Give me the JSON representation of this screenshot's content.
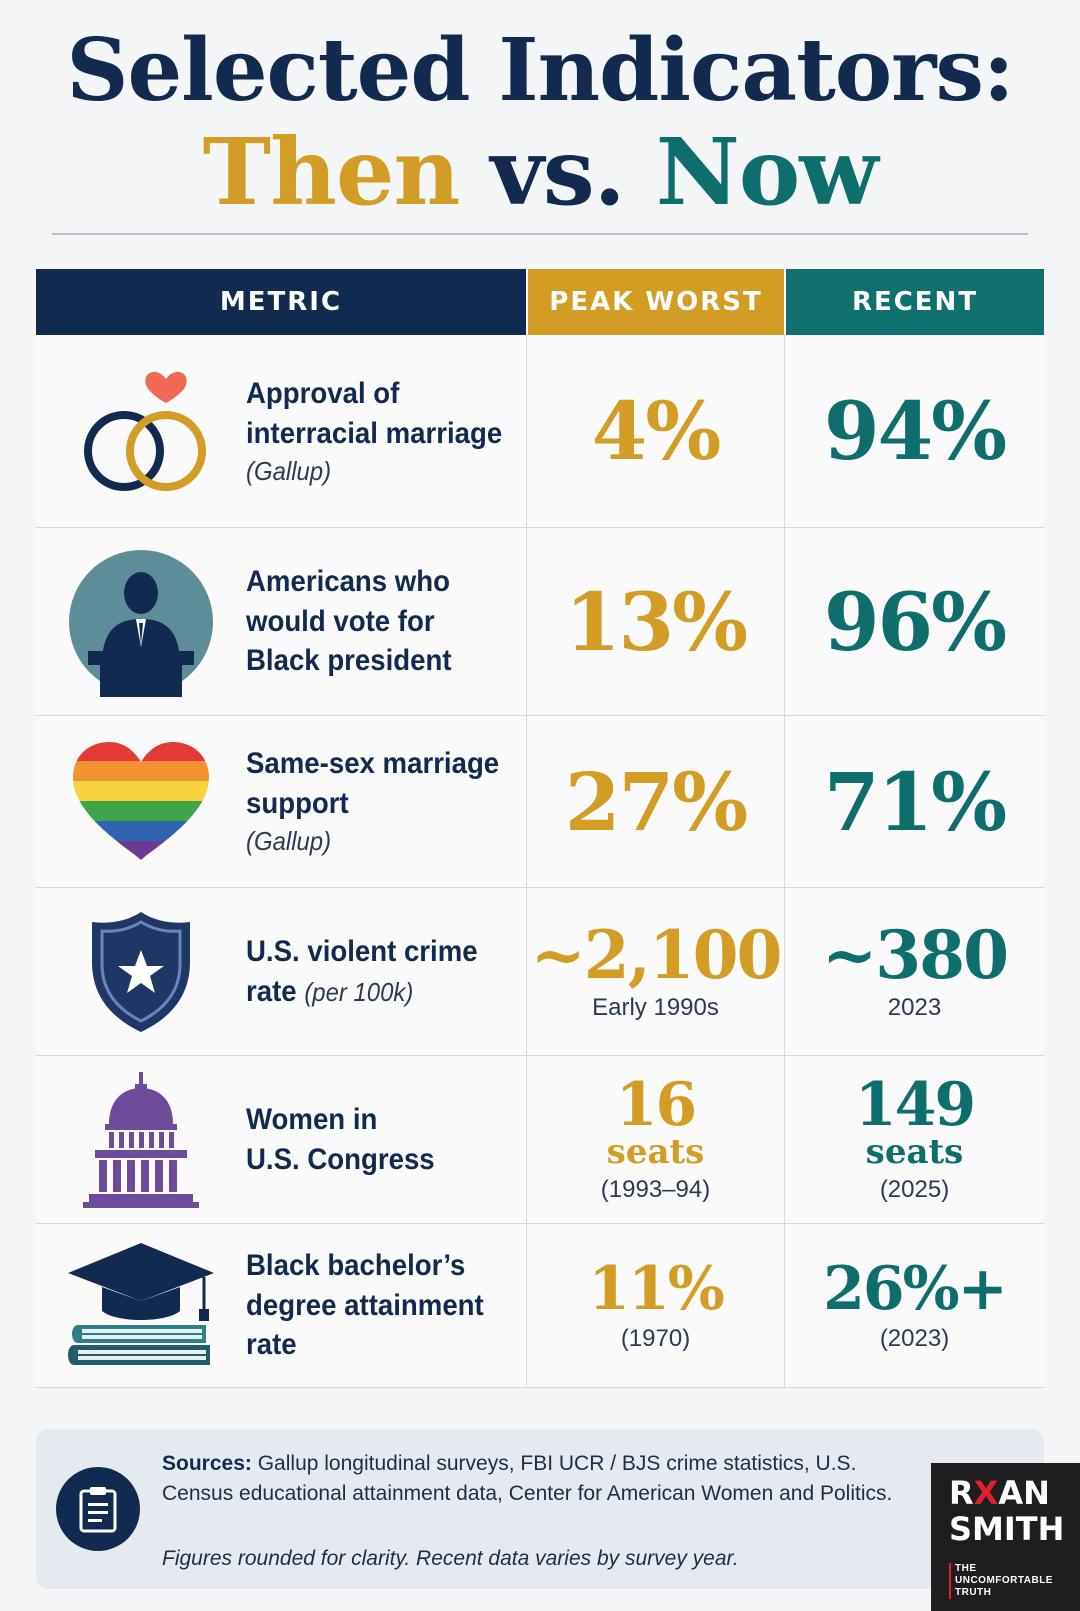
{
  "title": {
    "line1": "Selected Indicators:",
    "then": "Then",
    "vs": "vs.",
    "now": "Now"
  },
  "headers": {
    "metric": "METRIC",
    "peak": "PEAK WORST",
    "recent": "RECENT"
  },
  "rows": [
    {
      "icon": "wedding-rings-icon",
      "label": [
        "Approval of",
        "interracial marriage"
      ],
      "source": "(Gallup)",
      "peak": "4%",
      "recent": "94%"
    },
    {
      "icon": "president-podium-icon",
      "label": [
        "Americans who",
        "would vote for",
        "Black president"
      ],
      "peak": "13%",
      "recent": "96%"
    },
    {
      "icon": "rainbow-heart-icon",
      "label": [
        "Same-sex marriage",
        "support"
      ],
      "source": "(Gallup)",
      "peak": "27%",
      "recent": "71%"
    },
    {
      "icon": "police-badge-icon",
      "label": [
        "U.S. violent crime",
        "rate"
      ],
      "unit": "(per 100k)",
      "peak": "~2,100",
      "peak_note": "Early 1990s",
      "recent": "~380",
      "recent_note": "2023"
    },
    {
      "icon": "capitol-icon",
      "label": [
        "Women in",
        "U.S. Congress"
      ],
      "peak": "16",
      "peak_unit": "seats",
      "peak_note": "(1993–94)",
      "recent": "149",
      "recent_unit": "seats",
      "recent_note": "(2025)"
    },
    {
      "icon": "graduation-cap-icon",
      "label": [
        "Black bachelor’s",
        "degree attainment",
        "rate"
      ],
      "peak": "11%",
      "peak_note": "(1970)",
      "recent": "26%+",
      "recent_note": "(2023)"
    }
  ],
  "sources": {
    "label": "Sources:",
    "text": "Gallup longitudinal surveys, FBI UCR / BJS crime statistics, U.S. Census educational attainment data, Center for American Women and Politics.",
    "note": "Figures rounded for clarity. Recent data varies by survey year."
  },
  "brand": {
    "line1_a": "R",
    "line1_x": "X",
    "line1_b": "AN",
    "line2": "SMITH",
    "tag1": "THE",
    "tag2": "UNCOMFORTABLE",
    "tag3": "TRUTH"
  },
  "colors": {
    "navy": "#122a4f",
    "gold": "#d39c25",
    "teal": "#0f706e"
  }
}
